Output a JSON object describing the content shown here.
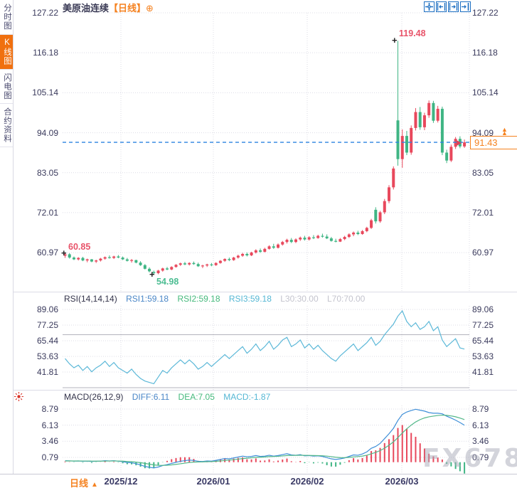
{
  "header": {
    "symbol": "美原油连续",
    "period_tag": "【日线】",
    "add_icon": "⊕"
  },
  "sidebar": {
    "items": [
      {
        "label": "分时图",
        "selected": false
      },
      {
        "label": "K线图",
        "selected": true
      },
      {
        "label": "闪电图",
        "selected": false
      },
      {
        "label": "合约资料",
        "selected": false
      }
    ]
  },
  "toolbar": {
    "icons": [
      "crosshair-tool",
      "compress-x-tool",
      "expand-x-tool",
      "go-to-latest-tool"
    ]
  },
  "rsi_header": {
    "name": "RSI(14,14,14)",
    "rsi1": "RSI1:59.18",
    "rsi2": "RSI2:59.18",
    "rsi3": "RSI3:59.18",
    "l30": "L30:30.00",
    "l70": "L70:70.00"
  },
  "macd_header": {
    "name": "MACD(26,12,9)",
    "diff": "DIFF:6.11",
    "dea": "DEA:7.05",
    "macd": "MACD:-1.87"
  },
  "price_tag": {
    "value": "91.43"
  },
  "bottom_bar": {
    "period_label": "日线",
    "arrow": "▲"
  },
  "x_axis": {
    "labels": [
      "2025/12",
      "2026/01",
      "2026/02",
      "2026/03"
    ]
  },
  "watermark": {
    "text": "FX678"
  },
  "colors": {
    "up": "#e8485c",
    "down": "#3fb584",
    "rsi_line": "#5cb8d8",
    "diff_line": "#3f8fd8",
    "dea_line": "#52b788",
    "dashed_line": "#2c84e0",
    "grid": "#dcdce6",
    "level_line": "#b3b3bd",
    "accent": "#f58220",
    "anno_pink": "#e8546a",
    "anno_green": "#4cbd92"
  },
  "chart_data": {
    "type": "candlestick+rsi+macd",
    "title": "美原油连续 日线",
    "price_axis": {
      "ticks": [
        "127.22",
        "116.18",
        "105.14",
        "94.09",
        "83.05",
        "72.01",
        "60.97"
      ]
    },
    "rsi_axis": {
      "ticks": [
        "89.06",
        "77.25",
        "65.44",
        "53.63",
        "41.81"
      ]
    },
    "macd_axis": {
      "ticks": [
        "8.79",
        "6.13",
        "3.46",
        "0.79"
      ]
    },
    "x_tick_labels": [
      "2025/12",
      "2026/01",
      "2026/02",
      "2026/03"
    ],
    "last_price": 91.43,
    "annotations": {
      "high": "119.48",
      "start": "60.85",
      "low": "54.98"
    },
    "rsi_levels": {
      "l70": 70,
      "l30": 30
    },
    "candles": [
      [
        60.1,
        60.85,
        59.5,
        60.5
      ],
      [
        60.5,
        60.8,
        59.3,
        59.6
      ],
      [
        59.6,
        59.9,
        58.9,
        59.1
      ],
      [
        59.1,
        59.7,
        58.8,
        59.5
      ],
      [
        59.5,
        59.8,
        58.6,
        58.8
      ],
      [
        58.8,
        59.3,
        58.3,
        59.1
      ],
      [
        59.1,
        59.2,
        58.3,
        58.5
      ],
      [
        58.5,
        59.0,
        58.1,
        58.8
      ],
      [
        58.8,
        59.5,
        58.5,
        59.3
      ],
      [
        59.3,
        59.9,
        59.0,
        59.7
      ],
      [
        59.7,
        60.2,
        59.3,
        59.5
      ],
      [
        59.5,
        60.1,
        59.2,
        59.9
      ],
      [
        59.9,
        60.3,
        59.4,
        59.6
      ],
      [
        59.6,
        59.9,
        58.9,
        59.1
      ],
      [
        59.1,
        59.5,
        58.5,
        58.7
      ],
      [
        58.7,
        59.2,
        58.2,
        58.9
      ],
      [
        58.9,
        59.0,
        58.0,
        58.2
      ],
      [
        58.2,
        58.6,
        57.3,
        57.5
      ],
      [
        57.5,
        57.8,
        56.3,
        56.5
      ],
      [
        56.5,
        56.9,
        55.5,
        55.8
      ],
      [
        55.6,
        56.0,
        54.98,
        55.3
      ],
      [
        55.3,
        56.2,
        55.0,
        56.0
      ],
      [
        56.0,
        56.8,
        55.7,
        56.6
      ],
      [
        56.6,
        57.0,
        56.1,
        56.3
      ],
      [
        56.3,
        57.2,
        56.1,
        57.0
      ],
      [
        57.0,
        57.8,
        56.8,
        57.6
      ],
      [
        57.6,
        58.2,
        57.3,
        58.0
      ],
      [
        58.0,
        58.4,
        57.5,
        57.7
      ],
      [
        57.7,
        58.3,
        57.4,
        58.1
      ],
      [
        58.1,
        58.5,
        57.6,
        57.8
      ],
      [
        57.8,
        58.2,
        57.0,
        57.2
      ],
      [
        57.2,
        57.6,
        56.7,
        57.4
      ],
      [
        57.4,
        57.9,
        57.0,
        57.7
      ],
      [
        57.7,
        58.1,
        57.2,
        57.5
      ],
      [
        57.5,
        58.3,
        57.3,
        58.1
      ],
      [
        58.1,
        58.9,
        57.9,
        58.7
      ],
      [
        58.7,
        59.4,
        58.4,
        59.2
      ],
      [
        59.2,
        59.6,
        58.6,
        58.9
      ],
      [
        58.9,
        59.8,
        58.7,
        59.6
      ],
      [
        59.6,
        60.4,
        59.3,
        60.1
      ],
      [
        60.1,
        60.9,
        59.8,
        60.6
      ],
      [
        60.6,
        61.0,
        59.9,
        60.2
      ],
      [
        60.2,
        61.2,
        60.0,
        61.0
      ],
      [
        61.0,
        61.9,
        60.7,
        61.6
      ],
      [
        61.6,
        62.1,
        60.9,
        61.2
      ],
      [
        61.2,
        62.3,
        61.0,
        62.0
      ],
      [
        62.0,
        63.0,
        61.8,
        62.7
      ],
      [
        62.7,
        63.4,
        62.0,
        62.3
      ],
      [
        62.3,
        63.5,
        62.1,
        63.2
      ],
      [
        63.2,
        64.2,
        62.9,
        63.9
      ],
      [
        63.9,
        64.8,
        63.5,
        64.5
      ],
      [
        64.5,
        65.0,
        63.6,
        63.9
      ],
      [
        63.9,
        64.9,
        63.6,
        64.6
      ],
      [
        64.6,
        65.4,
        64.2,
        65.1
      ],
      [
        65.1,
        65.6,
        64.3,
        64.6
      ],
      [
        64.6,
        65.5,
        64.3,
        65.2
      ],
      [
        65.2,
        65.8,
        64.7,
        65.0
      ],
      [
        65.0,
        65.9,
        64.8,
        65.6
      ],
      [
        65.6,
        66.2,
        65.1,
        65.4
      ],
      [
        65.4,
        66.0,
        64.7,
        64.9
      ],
      [
        64.9,
        65.3,
        64.0,
        64.2
      ],
      [
        64.2,
        64.8,
        63.8,
        64.0
      ],
      [
        64.0,
        65.0,
        63.9,
        64.7
      ],
      [
        64.7,
        65.6,
        64.4,
        65.3
      ],
      [
        65.3,
        66.3,
        65.0,
        66.0
      ],
      [
        66.0,
        66.8,
        65.5,
        66.5
      ],
      [
        66.5,
        67.0,
        65.8,
        66.1
      ],
      [
        66.1,
        67.2,
        65.9,
        66.9
      ],
      [
        66.9,
        68.1,
        66.6,
        67.8
      ],
      [
        67.8,
        70.3,
        67.5,
        69.9
      ],
      [
        72.8,
        73.5,
        69.0,
        69.6
      ],
      [
        69.6,
        72.5,
        69.2,
        72.1
      ],
      [
        72.1,
        75.8,
        71.6,
        75.2
      ],
      [
        75.2,
        79.6,
        74.6,
        79.0
      ],
      [
        79.0,
        84.8,
        78.4,
        84.2
      ],
      [
        97.5,
        119.48,
        85.0,
        86.8
      ],
      [
        86.8,
        95.0,
        84.4,
        93.2
      ],
      [
        93.2,
        94.6,
        87.9,
        88.6
      ],
      [
        88.6,
        96.1,
        88.0,
        95.4
      ],
      [
        95.4,
        100.9,
        94.7,
        99.8
      ],
      [
        99.8,
        101.2,
        94.9,
        95.6
      ],
      [
        95.6,
        99.6,
        94.8,
        98.9
      ],
      [
        98.9,
        103.0,
        98.2,
        102.3
      ],
      [
        102.3,
        102.9,
        96.8,
        97.4
      ],
      [
        97.4,
        101.5,
        96.9,
        100.7
      ],
      [
        100.7,
        101.3,
        87.9,
        88.6
      ],
      [
        88.6,
        89.4,
        85.7,
        86.4
      ],
      [
        86.4,
        90.8,
        86.0,
        90.2
      ],
      [
        90.2,
        92.9,
        89.6,
        92.4
      ],
      [
        92.4,
        93.1,
        89.8,
        90.3
      ],
      [
        90.3,
        92.2,
        89.9,
        91.43
      ]
    ],
    "rsi": [
      52,
      48,
      45,
      47,
      43,
      46,
      42,
      45,
      47,
      50,
      46,
      49,
      45,
      43,
      41,
      44,
      40,
      37,
      35,
      34,
      33,
      38,
      43,
      41,
      45,
      48,
      51,
      48,
      51,
      48,
      44,
      46,
      49,
      46,
      49,
      52,
      55,
      52,
      55,
      58,
      61,
      56,
      59,
      63,
      58,
      61,
      65,
      59,
      62,
      66,
      68,
      61,
      63,
      66,
      60,
      63,
      59,
      62,
      58,
      55,
      52,
      50,
      54,
      57,
      60,
      63,
      58,
      61,
      64,
      68,
      62,
      65,
      70,
      74,
      78,
      84,
      88,
      80,
      76,
      79,
      74,
      76,
      80,
      73,
      76,
      66,
      61,
      64,
      67,
      60,
      59.18
    ],
    "diff": [
      0.25,
      0.22,
      0.18,
      0.2,
      0.15,
      0.18,
      0.12,
      0.15,
      0.18,
      0.25,
      0.2,
      0.24,
      0.16,
      0.08,
      -0.05,
      -0.1,
      -0.25,
      -0.45,
      -0.7,
      -0.85,
      -0.95,
      -0.8,
      -0.55,
      -0.4,
      -0.2,
      -0.02,
      0.15,
      0.25,
      0.35,
      0.28,
      0.15,
      0.12,
      0.2,
      0.18,
      0.3,
      0.45,
      0.6,
      0.55,
      0.7,
      0.85,
      1.0,
      0.9,
      0.95,
      1.1,
      0.95,
      1.0,
      1.15,
      1.0,
      1.1,
      1.25,
      1.4,
      1.2,
      1.15,
      1.25,
      1.05,
      1.1,
      1.0,
      1.05,
      0.95,
      0.75,
      0.55,
      0.45,
      0.55,
      0.7,
      0.95,
      1.2,
      1.15,
      1.35,
      1.7,
      2.3,
      2.6,
      3.1,
      3.9,
      4.7,
      5.6,
      6.9,
      7.9,
      8.3,
      8.55,
      8.75,
      8.6,
      8.45,
      8.2,
      8.1,
      8.1,
      8.0,
      7.6,
      7.3,
      6.95,
      6.55,
      6.11
    ],
    "dea": [
      0.2,
      0.2,
      0.2,
      0.2,
      0.19,
      0.19,
      0.18,
      0.17,
      0.17,
      0.18,
      0.19,
      0.2,
      0.19,
      0.17,
      0.12,
      0.08,
      0.01,
      -0.08,
      -0.2,
      -0.33,
      -0.45,
      -0.52,
      -0.53,
      -0.51,
      -0.45,
      -0.36,
      -0.26,
      -0.16,
      -0.06,
      0.01,
      0.04,
      0.05,
      0.08,
      0.1,
      0.14,
      0.2,
      0.28,
      0.34,
      0.41,
      0.5,
      0.6,
      0.66,
      0.72,
      0.79,
      0.82,
      0.86,
      0.92,
      0.94,
      0.97,
      1.03,
      1.1,
      1.12,
      1.13,
      1.15,
      1.13,
      1.12,
      1.1,
      1.09,
      1.06,
      1.0,
      0.91,
      0.82,
      0.76,
      0.75,
      0.79,
      0.87,
      0.93,
      1.01,
      1.15,
      1.38,
      1.62,
      1.92,
      2.32,
      2.8,
      3.36,
      4.07,
      4.83,
      5.52,
      6.13,
      6.65,
      7.04,
      7.32,
      7.5,
      7.62,
      7.72,
      7.78,
      7.74,
      7.65,
      7.51,
      7.3,
      7.05
    ]
  }
}
